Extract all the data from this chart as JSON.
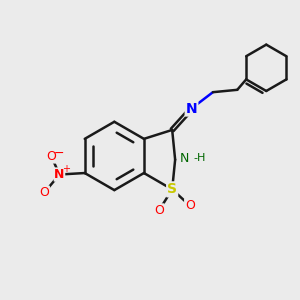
{
  "bg_color": "#ebebeb",
  "bond_color": "#1a1a1a",
  "bond_width": 1.8,
  "N_color": "#0000ff",
  "S_color": "#c8c800",
  "O_color": "#ff0000",
  "NH_color": "#006600",
  "fig_size": [
    3.0,
    3.0
  ],
  "dpi": 100,
  "xlim": [
    0,
    10
  ],
  "ylim": [
    0,
    10
  ]
}
